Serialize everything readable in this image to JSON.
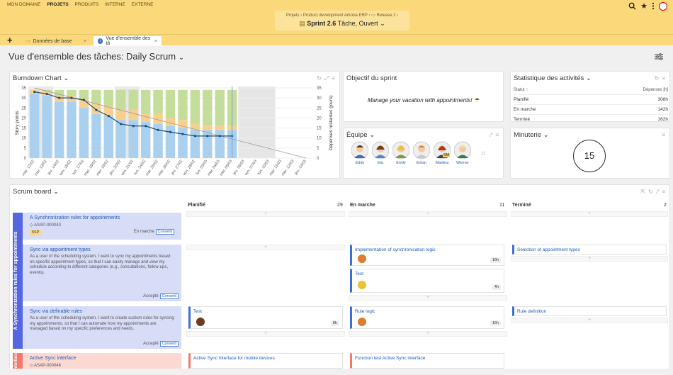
{
  "nav": {
    "items": [
      "MON DOMAINE",
      "PROJETS",
      "PRODUITS",
      "INTERNE",
      "EXTERNE"
    ],
    "active": "PROJETS"
  },
  "context": {
    "crumbs": "Projets  ›  Product development Arkona ERP  ›  ▭ Release 2  ›",
    "sprint_name": "Sprint 2.6",
    "sprint_state": "Tâche, Ouvert"
  },
  "tabs": {
    "tab1": "Données de base",
    "tab2": "Vue d'ensemble des tâ"
  },
  "page_title": "Vue d'ensemble des tâches: Daily Scrum",
  "burndown": {
    "title": "Burndown Chart",
    "ylabel_left": "Story points",
    "ylabel_right": "Dépenses restantes (jours)"
  },
  "chart_data": {
    "type": "bar",
    "categories": [
      "mar. 12/02",
      "mer. 13/02",
      "jeu. 14/02",
      "ven. 15/02",
      "lun. 17/02",
      "mar. 18/02",
      "mer. 19/02",
      "jeu. 20/02",
      "ven. 21/02",
      "lun. 24/02",
      "mar. 25/02",
      "mer. 26/02",
      "jeu. 27/02",
      "ven. 28/02",
      "lun. 03/03",
      "mar. 04/03",
      "mer. 05/03",
      "jeu. 06/03",
      "ven. 07/03",
      "lun. 10/03",
      "mar. 11/03",
      "mer. 12/03",
      "jeu. 13/03"
    ],
    "series": [
      {
        "name": "Terminé",
        "values": [
          32,
          31,
          28,
          28,
          25,
          22,
          21,
          19,
          19,
          18,
          17,
          16,
          15,
          14,
          14,
          14,
          14,
          0,
          0,
          0,
          0,
          0,
          0
        ]
      },
      {
        "name": "En marche",
        "values": [
          2,
          2,
          3,
          3,
          4,
          5,
          5,
          5,
          5,
          4,
          5,
          4,
          4,
          3,
          2,
          2,
          2,
          0,
          0,
          0,
          0,
          0,
          0
        ]
      },
      {
        "name": "Planifié",
        "values": [
          0,
          1,
          3,
          3,
          5,
          7,
          8,
          10,
          10,
          12,
          12,
          14,
          15,
          17,
          18,
          18,
          18,
          0,
          0,
          0,
          0,
          0,
          0
        ]
      }
    ],
    "remaining_line": [
      33,
      32,
      30,
      30,
      29,
      24,
      21,
      17,
      16,
      16,
      14,
      13,
      12,
      11,
      11,
      11,
      11
    ],
    "ideal_line": [
      35,
      0
    ],
    "ylim": [
      0,
      35
    ],
    "yticks": [
      0,
      5,
      10,
      15,
      20,
      25,
      30,
      35
    ],
    "y2ticks": [
      0,
      5,
      10,
      15,
      20,
      25,
      30,
      35
    ]
  },
  "objective": {
    "title": "Objectif du sprint",
    "text": "Manage your vacation with appointments!"
  },
  "stats": {
    "title": "Statistique des activités",
    "col1": "Statut ↑",
    "col2": "Dépenses [h]",
    "rows": [
      [
        "Planifié",
        "308h"
      ],
      [
        "En marche",
        "142h"
      ],
      [
        "Terminé",
        "162h"
      ]
    ]
  },
  "team": {
    "title": "Équipe",
    "members": [
      "Eddy",
      "Ela",
      "Emily",
      "Erkan",
      "Martina",
      "Werner"
    ],
    "sm": "SM"
  },
  "timer": {
    "title": "Minuterie",
    "value": "15"
  },
  "scrum": {
    "title": "Scrum board",
    "columns": [
      {
        "name": "Planifié",
        "count": "29"
      },
      {
        "name": "En marche",
        "count": "11"
      },
      {
        "name": "Terminé",
        "count": "2"
      }
    ],
    "epic": "A Synchronization rules for appointments",
    "epic2": "nterface",
    "stories": [
      {
        "title": "A Synchronization rules for appointments",
        "id": "ASAP-000043",
        "sp": "5SP",
        "status": "En marche",
        "badge": "Converti"
      },
      {
        "title": "Sync via appointment types",
        "text": "As a user of the scheduling system, I want to sync my appointments based on specific appointment types, so that I can easily manage and view my schedule according to different categories (e.g., consultations, follow-ups, events).",
        "status": "Accepté",
        "badge": "Converti"
      },
      {
        "title": "Sync via definable rules",
        "text": "As a user of the scheduling system, I want to create custom rules for syncing my appointments, so that I can automate how my appointments are managed based on my specific preferences and needs.",
        "status": "Accepté",
        "badge": "Converti"
      },
      {
        "title": "Active Sync interface",
        "id": "ASAP-000046"
      }
    ],
    "cards": {
      "c1": {
        "title": "Implementation of synchronisation logic",
        "hours": "16h"
      },
      "c2": {
        "title": "Test",
        "hours": "4h"
      },
      "c3": {
        "title": "Selection of appointment types"
      },
      "c4": {
        "title": "Test",
        "hours": "8h"
      },
      "c5": {
        "title": "Rule logic",
        "hours": "16h"
      },
      "c6": {
        "title": "Rule definition"
      },
      "c7": {
        "title": "Active Sync interface for mobile devices"
      },
      "c8": {
        "title": "Function test Active Sync interface"
      }
    },
    "add": "+"
  },
  "colors": {
    "accent": "#fbd97b",
    "blue": "#3b6fd4",
    "done": "#a9d0ee",
    "inprogress": "#f8d08e",
    "planned": "#c5dd9a",
    "epic1": "#5566e0",
    "epic2": "#f07b6b"
  }
}
